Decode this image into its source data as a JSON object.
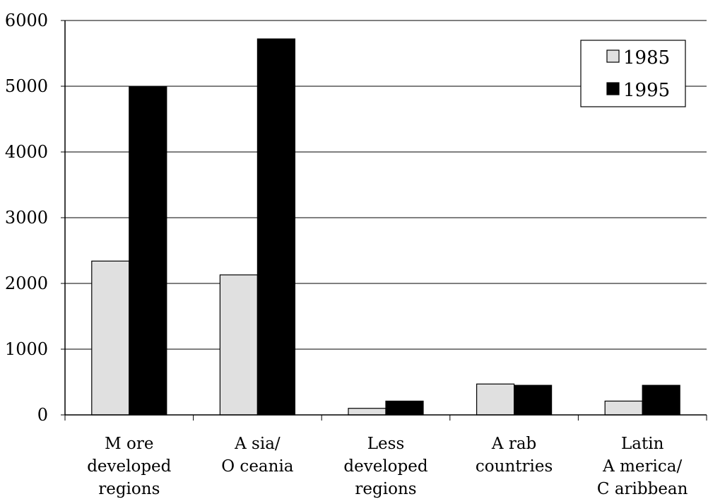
{
  "chart_data": {
    "type": "bar",
    "title": "",
    "xlabel": "",
    "ylabel": "",
    "ylim": [
      0,
      6000
    ],
    "yticks": [
      "0",
      "1000",
      "2000",
      "3000",
      "4000",
      "5000",
      "6000"
    ],
    "grid": "horizontal",
    "legend_position": "top-right",
    "categories": [
      [
        "M ore",
        "developed",
        "regions"
      ],
      [
        "A sia/",
        "O ceania"
      ],
      [
        "Less",
        "developed",
        "regions"
      ],
      [
        "A rab",
        "countries"
      ],
      [
        "Latin",
        "A merica/",
        "C aribbean"
      ]
    ],
    "series": [
      {
        "name": "1985",
        "color": "#e0e0e0",
        "values": [
          2340,
          2130,
          100,
          470,
          210
        ]
      },
      {
        "name": "1995",
        "color": "#000000",
        "values": [
          4990,
          5720,
          210,
          450,
          450
        ]
      }
    ]
  }
}
